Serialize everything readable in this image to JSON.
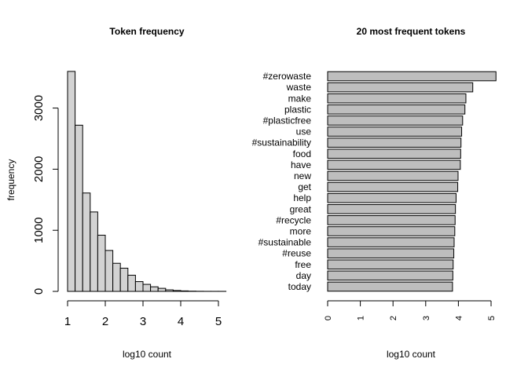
{
  "chart_data": [
    {
      "type": "bar",
      "title": "Token frequency",
      "xlabel": "log10 count",
      "ylabel": "frequency",
      "bins": [
        {
          "x0": 1.0,
          "x1": 1.2,
          "value": 3600
        },
        {
          "x0": 1.2,
          "x1": 1.4,
          "value": 2720
        },
        {
          "x0": 1.4,
          "x1": 1.6,
          "value": 1610
        },
        {
          "x0": 1.6,
          "x1": 1.8,
          "value": 1300
        },
        {
          "x0": 1.8,
          "x1": 2.0,
          "value": 920
        },
        {
          "x0": 2.0,
          "x1": 2.2,
          "value": 670
        },
        {
          "x0": 2.2,
          "x1": 2.4,
          "value": 460
        },
        {
          "x0": 2.4,
          "x1": 2.6,
          "value": 380
        },
        {
          "x0": 2.6,
          "x1": 2.8,
          "value": 265
        },
        {
          "x0": 2.8,
          "x1": 3.0,
          "value": 160
        },
        {
          "x0": 3.0,
          "x1": 3.2,
          "value": 115
        },
        {
          "x0": 3.2,
          "x1": 3.4,
          "value": 75
        },
        {
          "x0": 3.4,
          "x1": 3.6,
          "value": 50
        },
        {
          "x0": 3.6,
          "x1": 3.8,
          "value": 25
        },
        {
          "x0": 3.8,
          "x1": 4.0,
          "value": 15
        },
        {
          "x0": 4.0,
          "x1": 4.2,
          "value": 8
        },
        {
          "x0": 4.2,
          "x1": 4.4,
          "value": 4
        },
        {
          "x0": 4.4,
          "x1": 4.6,
          "value": 2
        },
        {
          "x0": 4.6,
          "x1": 4.8,
          "value": 1
        },
        {
          "x0": 4.8,
          "x1": 5.0,
          "value": 1
        },
        {
          "x0": 5.0,
          "x1": 5.2,
          "value": 1
        }
      ],
      "xlim": [
        1,
        5.2
      ],
      "ylim": [
        0,
        3600
      ],
      "xticks": [
        1,
        2,
        3,
        4,
        5
      ],
      "yticks": [
        0,
        1000,
        2000,
        3000
      ],
      "bar_color": "#d3d3d3",
      "grid": false
    },
    {
      "type": "bar",
      "orientation": "horizontal",
      "title": "20 most frequent tokens",
      "xlabel": "log10 count",
      "categories": [
        "#zerowaste",
        "waste",
        "make",
        "plastic",
        "#plasticfree",
        "use",
        "#sustainability",
        "food",
        "have",
        "new",
        "get",
        "help",
        "great",
        "#recycle",
        "more",
        "#sustainable",
        "#reuse",
        "free",
        "day",
        "today"
      ],
      "values": [
        5.15,
        4.44,
        4.23,
        4.2,
        4.13,
        4.1,
        4.08,
        4.07,
        4.06,
        3.99,
        3.98,
        3.93,
        3.91,
        3.9,
        3.89,
        3.87,
        3.86,
        3.84,
        3.83,
        3.82
      ],
      "xlim": [
        0,
        5
      ],
      "xticks": [
        0,
        1,
        2,
        3,
        4,
        5
      ],
      "bar_color": "#bebebe",
      "grid": false
    }
  ]
}
